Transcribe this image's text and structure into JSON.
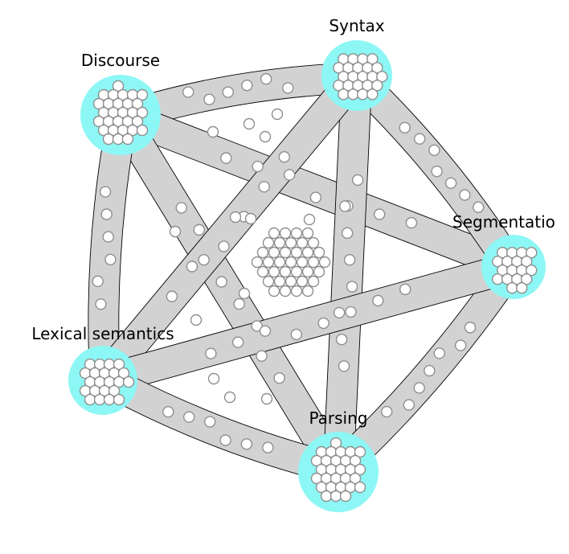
{
  "diagram": {
    "type": "hypergraph-overlap",
    "colors": {
      "node_fill": "#8df7f5",
      "band_fill": "#d2d2d2",
      "band_stroke": "#000000",
      "dot_fill": "#ffffff",
      "dot_stroke": "#8f8f8f"
    },
    "nodes": [
      {
        "id": "discourse",
        "label": "Discourse"
      },
      {
        "id": "syntax",
        "label": "Syntax"
      },
      {
        "id": "segmentation",
        "label": "Segmentatio"
      },
      {
        "id": "parsing",
        "label": "Parsing"
      },
      {
        "id": "lexical",
        "label": "Lexical semantics"
      }
    ],
    "edges": [
      {
        "from": "discourse",
        "to": "syntax"
      },
      {
        "from": "discourse",
        "to": "segmentation"
      },
      {
        "from": "discourse",
        "to": "parsing"
      },
      {
        "from": "discourse",
        "to": "lexical"
      },
      {
        "from": "syntax",
        "to": "segmentation"
      },
      {
        "from": "syntax",
        "to": "parsing"
      },
      {
        "from": "syntax",
        "to": "lexical"
      },
      {
        "from": "segmentation",
        "to": "parsing"
      },
      {
        "from": "segmentation",
        "to": "lexical"
      },
      {
        "from": "parsing",
        "to": "lexical"
      }
    ]
  }
}
